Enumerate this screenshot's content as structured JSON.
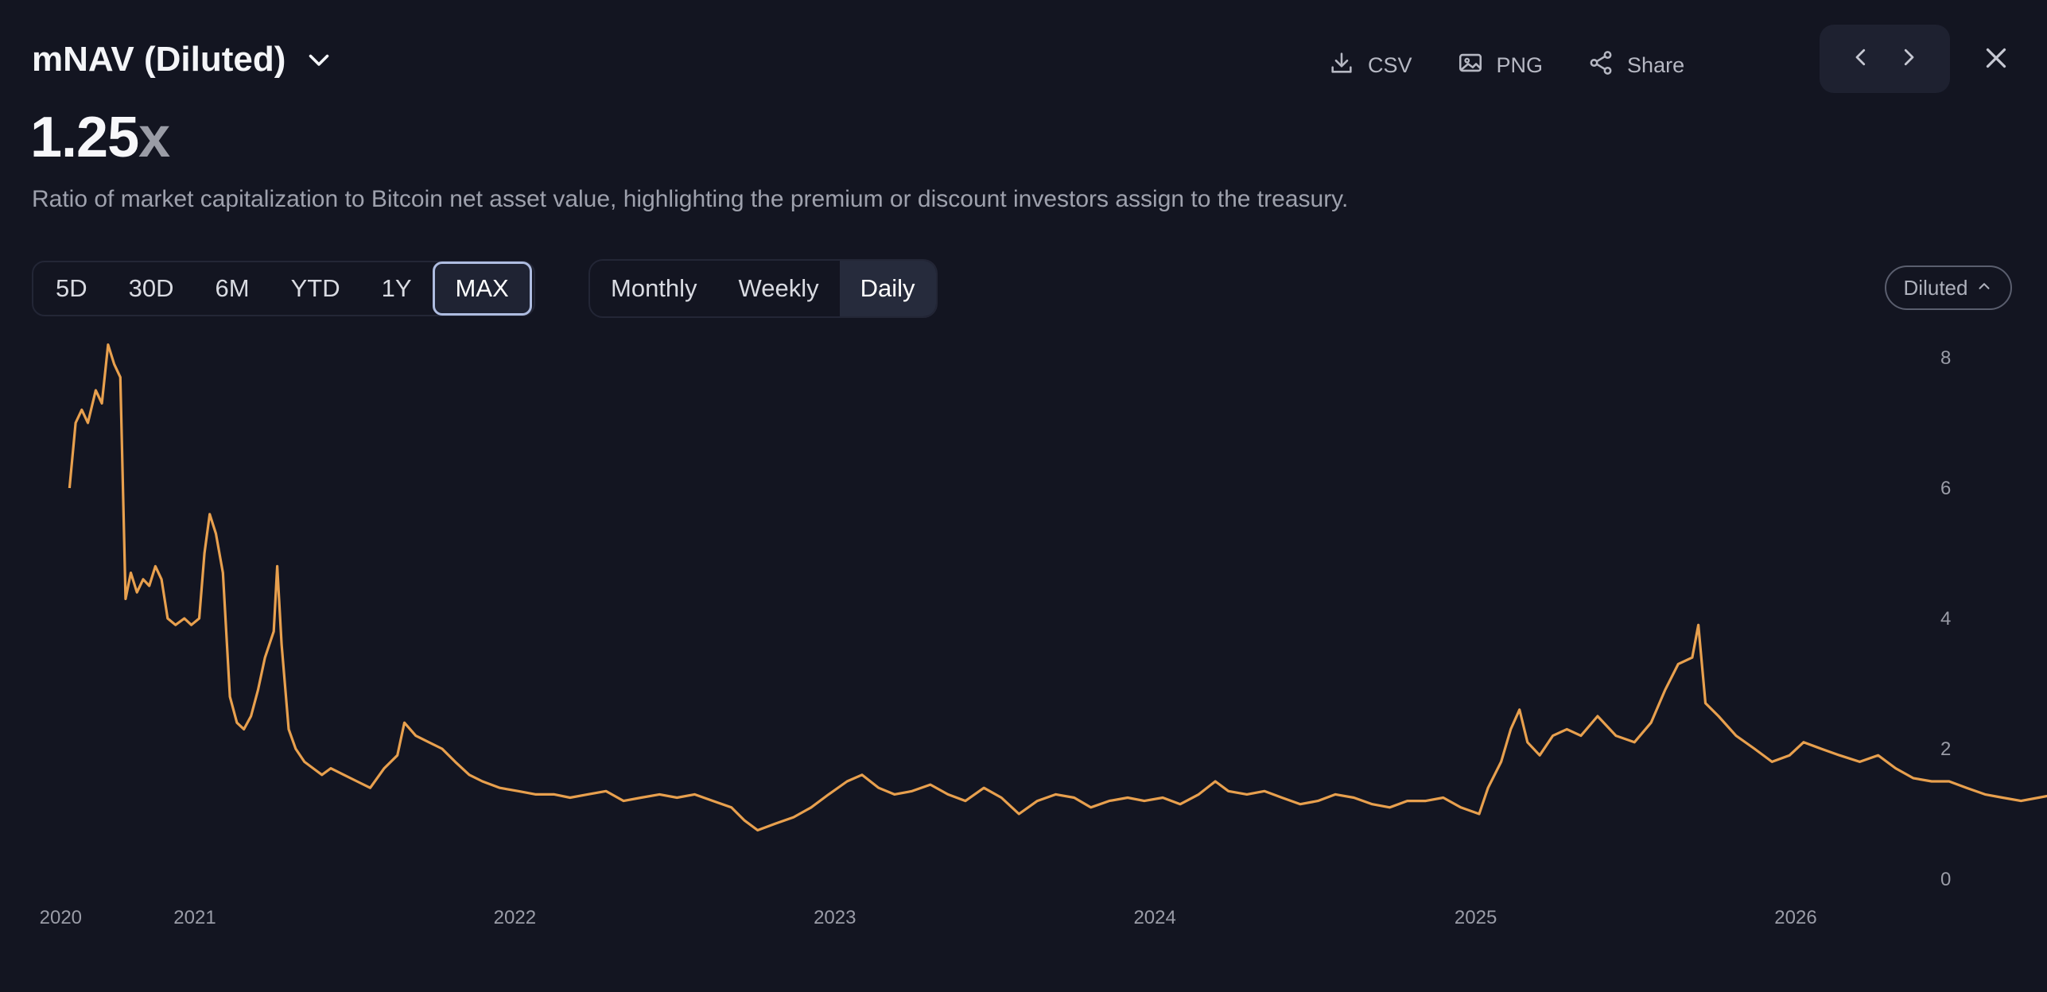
{
  "header": {
    "title": "mNAV (Diluted)",
    "value_number": "1.25",
    "value_unit": "x",
    "description": "Ratio of market capitalization to Bitcoin net asset value, highlighting the premium or discount investors assign to the treasury."
  },
  "actions": {
    "csv_label": "CSV",
    "png_label": "PNG",
    "share_label": "Share"
  },
  "range_buttons": [
    "5D",
    "30D",
    "6M",
    "YTD",
    "1Y",
    "MAX"
  ],
  "range_selected": "MAX",
  "frequency_buttons": [
    "Monthly",
    "Weekly",
    "Daily"
  ],
  "frequency_selected": "Daily",
  "mode_toggle": {
    "label": "Diluted"
  },
  "colors": {
    "background": "#131521",
    "line": "#e8a04e",
    "accent_border": "#aebce0"
  },
  "chart_data": {
    "type": "line",
    "title": "",
    "xlabel": "",
    "ylabel": "",
    "y_axis_position": "right",
    "ylim": [
      0,
      8
    ],
    "y_ticks": [
      0,
      2,
      4,
      6,
      8
    ],
    "x_ticks": [
      {
        "label": "2020",
        "date": "2020-08-01"
      },
      {
        "label": "2021",
        "date": "2021-01-01"
      },
      {
        "label": "2022",
        "date": "2022-01-01"
      },
      {
        "label": "2023",
        "date": "2023-01-01"
      },
      {
        "label": "2024",
        "date": "2024-01-01"
      },
      {
        "label": "2025",
        "date": "2025-01-01"
      },
      {
        "label": "2026",
        "date": "2026-01-01"
      }
    ],
    "grid": false,
    "series": [
      {
        "values": [
          [
            "2020-08-11",
            6.0
          ],
          [
            "2020-08-18",
            7.0
          ],
          [
            "2020-08-25",
            7.2
          ],
          [
            "2020-09-01",
            7.0
          ],
          [
            "2020-09-10",
            7.5
          ],
          [
            "2020-09-17",
            7.3
          ],
          [
            "2020-09-24",
            8.2
          ],
          [
            "2020-10-01",
            7.9
          ],
          [
            "2020-10-08",
            7.7
          ],
          [
            "2020-10-14",
            4.3
          ],
          [
            "2020-10-20",
            4.7
          ],
          [
            "2020-10-27",
            4.4
          ],
          [
            "2020-11-03",
            4.6
          ],
          [
            "2020-11-10",
            4.5
          ],
          [
            "2020-11-17",
            4.8
          ],
          [
            "2020-11-24",
            4.6
          ],
          [
            "2020-12-01",
            4.0
          ],
          [
            "2020-12-10",
            3.9
          ],
          [
            "2020-12-20",
            4.0
          ],
          [
            "2020-12-28",
            3.9
          ],
          [
            "2021-01-06",
            4.0
          ],
          [
            "2021-01-12",
            5.0
          ],
          [
            "2021-01-18",
            5.6
          ],
          [
            "2021-01-25",
            5.3
          ],
          [
            "2021-02-02",
            4.7
          ],
          [
            "2021-02-10",
            2.8
          ],
          [
            "2021-02-18",
            2.4
          ],
          [
            "2021-02-26",
            2.3
          ],
          [
            "2021-03-06",
            2.5
          ],
          [
            "2021-03-14",
            2.9
          ],
          [
            "2021-03-22",
            3.4
          ],
          [
            "2021-04-01",
            3.8
          ],
          [
            "2021-04-05",
            4.8
          ],
          [
            "2021-04-10",
            3.6
          ],
          [
            "2021-04-18",
            2.3
          ],
          [
            "2021-04-26",
            2.0
          ],
          [
            "2021-05-06",
            1.8
          ],
          [
            "2021-05-16",
            1.7
          ],
          [
            "2021-05-26",
            1.6
          ],
          [
            "2021-06-05",
            1.7
          ],
          [
            "2021-06-20",
            1.6
          ],
          [
            "2021-07-05",
            1.5
          ],
          [
            "2021-07-20",
            1.4
          ],
          [
            "2021-08-05",
            1.7
          ],
          [
            "2021-08-20",
            1.9
          ],
          [
            "2021-08-28",
            2.4
          ],
          [
            "2021-09-10",
            2.2
          ],
          [
            "2021-09-25",
            2.1
          ],
          [
            "2021-10-10",
            2.0
          ],
          [
            "2021-10-25",
            1.8
          ],
          [
            "2021-11-10",
            1.6
          ],
          [
            "2021-11-25",
            1.5
          ],
          [
            "2021-12-15",
            1.4
          ],
          [
            "2022-01-05",
            1.35
          ],
          [
            "2022-01-25",
            1.3
          ],
          [
            "2022-02-15",
            1.3
          ],
          [
            "2022-03-05",
            1.25
          ],
          [
            "2022-03-25",
            1.3
          ],
          [
            "2022-04-15",
            1.35
          ],
          [
            "2022-05-05",
            1.2
          ],
          [
            "2022-05-25",
            1.25
          ],
          [
            "2022-06-15",
            1.3
          ],
          [
            "2022-07-05",
            1.25
          ],
          [
            "2022-07-25",
            1.3
          ],
          [
            "2022-08-15",
            1.2
          ],
          [
            "2022-09-05",
            1.1
          ],
          [
            "2022-09-20",
            0.9
          ],
          [
            "2022-10-05",
            0.75
          ],
          [
            "2022-10-25",
            0.85
          ],
          [
            "2022-11-15",
            0.95
          ],
          [
            "2022-12-05",
            1.1
          ],
          [
            "2022-12-25",
            1.3
          ],
          [
            "2023-01-15",
            1.5
          ],
          [
            "2023-02-01",
            1.6
          ],
          [
            "2023-02-20",
            1.4
          ],
          [
            "2023-03-10",
            1.3
          ],
          [
            "2023-03-30",
            1.35
          ],
          [
            "2023-04-20",
            1.45
          ],
          [
            "2023-05-10",
            1.3
          ],
          [
            "2023-05-30",
            1.2
          ],
          [
            "2023-06-20",
            1.4
          ],
          [
            "2023-07-10",
            1.25
          ],
          [
            "2023-07-30",
            1.0
          ],
          [
            "2023-08-20",
            1.2
          ],
          [
            "2023-09-10",
            1.3
          ],
          [
            "2023-10-01",
            1.25
          ],
          [
            "2023-10-20",
            1.1
          ],
          [
            "2023-11-10",
            1.2
          ],
          [
            "2023-12-01",
            1.25
          ],
          [
            "2023-12-20",
            1.2
          ],
          [
            "2024-01-10",
            1.25
          ],
          [
            "2024-01-30",
            1.15
          ],
          [
            "2024-02-20",
            1.3
          ],
          [
            "2024-03-10",
            1.5
          ],
          [
            "2024-03-25",
            1.35
          ],
          [
            "2024-04-15",
            1.3
          ],
          [
            "2024-05-05",
            1.35
          ],
          [
            "2024-05-25",
            1.25
          ],
          [
            "2024-06-15",
            1.15
          ],
          [
            "2024-07-05",
            1.2
          ],
          [
            "2024-07-25",
            1.3
          ],
          [
            "2024-08-15",
            1.25
          ],
          [
            "2024-09-05",
            1.15
          ],
          [
            "2024-09-25",
            1.1
          ],
          [
            "2024-10-15",
            1.2
          ],
          [
            "2024-11-05",
            1.2
          ],
          [
            "2024-11-25",
            1.25
          ],
          [
            "2024-12-15",
            1.1
          ],
          [
            "2025-01-05",
            1.0
          ],
          [
            "2025-01-15",
            1.4
          ],
          [
            "2025-01-30",
            1.8
          ],
          [
            "2025-02-10",
            2.3
          ],
          [
            "2025-02-20",
            2.6
          ],
          [
            "2025-03-01",
            2.1
          ],
          [
            "2025-03-15",
            1.9
          ],
          [
            "2025-03-30",
            2.2
          ],
          [
            "2025-04-15",
            2.3
          ],
          [
            "2025-05-01",
            2.2
          ],
          [
            "2025-05-20",
            2.5
          ],
          [
            "2025-06-10",
            2.2
          ],
          [
            "2025-07-01",
            2.1
          ],
          [
            "2025-07-20",
            2.4
          ],
          [
            "2025-08-05",
            2.9
          ],
          [
            "2025-08-20",
            3.3
          ],
          [
            "2025-09-05",
            3.4
          ],
          [
            "2025-09-12",
            3.9
          ],
          [
            "2025-09-20",
            2.7
          ],
          [
            "2025-10-05",
            2.5
          ],
          [
            "2025-10-25",
            2.2
          ],
          [
            "2025-11-15",
            2.0
          ],
          [
            "2025-12-05",
            1.8
          ],
          [
            "2025-12-25",
            1.9
          ],
          [
            "2026-01-10",
            2.1
          ],
          [
            "2026-01-30",
            2.0
          ],
          [
            "2026-02-20",
            1.9
          ],
          [
            "2026-03-15",
            1.8
          ],
          [
            "2026-04-05",
            1.9
          ],
          [
            "2026-04-25",
            1.7
          ],
          [
            "2026-05-15",
            1.55
          ],
          [
            "2026-06-05",
            1.5
          ],
          [
            "2026-06-25",
            1.5
          ],
          [
            "2026-07-15",
            1.4
          ],
          [
            "2026-08-05",
            1.3
          ],
          [
            "2026-08-25",
            1.25
          ],
          [
            "2026-09-15",
            1.2
          ],
          [
            "2026-10-05",
            1.25
          ],
          [
            "2026-10-25",
            1.3
          ],
          [
            "2026-11-15",
            1.3
          ],
          [
            "2026-12-05",
            1.25
          ],
          [
            "2026-12-20",
            1.35
          ],
          [
            "2027-01-05",
            1.3
          ],
          [
            "2027-01-20",
            1.25
          ]
        ]
      }
    ]
  }
}
